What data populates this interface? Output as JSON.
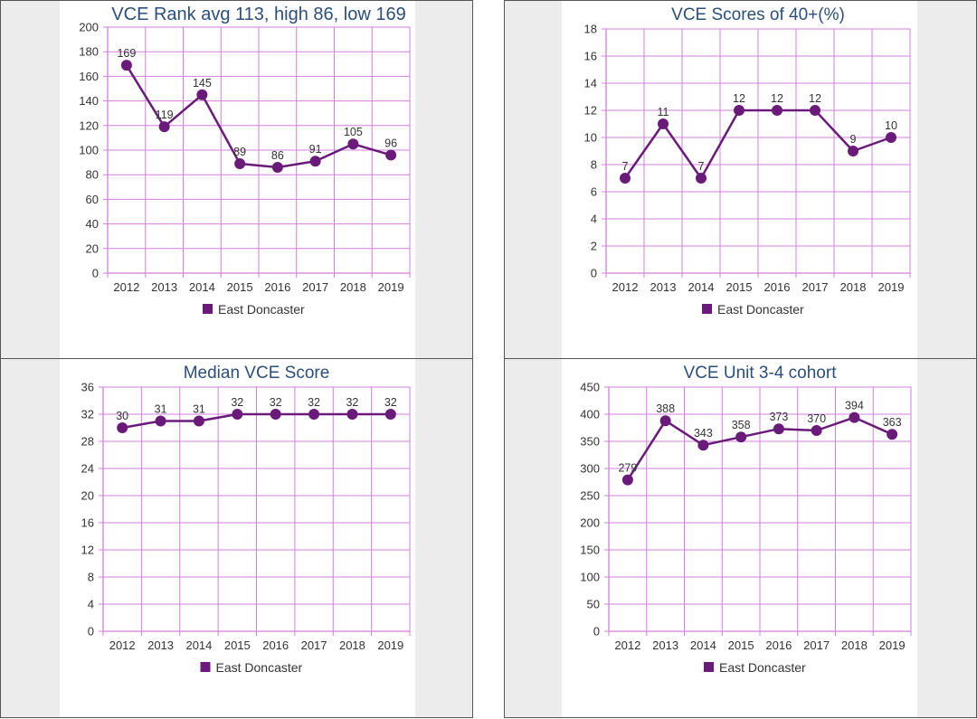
{
  "chart_data": [
    {
      "type": "line",
      "title": "VCE Rank avg 113, high 86, low 169",
      "categories": [
        "2012",
        "2013",
        "2014",
        "2015",
        "2016",
        "2017",
        "2018",
        "2019"
      ],
      "series": [
        {
          "name": "East Doncaster",
          "values": [
            169,
            119,
            145,
            89,
            86,
            91,
            105,
            96
          ]
        }
      ],
      "ylim": [
        0,
        200
      ],
      "yticks": [
        "0",
        "20",
        "40",
        "60",
        "80",
        "100",
        "120",
        "140",
        "160",
        "180",
        "200"
      ],
      "grid": true,
      "legend": "bottom-center",
      "color": "#6a1b7a",
      "grid_color": "#d27fdc"
    },
    {
      "type": "line",
      "title": "VCE Scores of 40+(%)",
      "categories": [
        "2012",
        "2013",
        "2014",
        "2015",
        "2016",
        "2017",
        "2018",
        "2019"
      ],
      "series": [
        {
          "name": "East Doncaster",
          "values": [
            7,
            11,
            7,
            12,
            12,
            12,
            9,
            10
          ]
        }
      ],
      "ylim": [
        0,
        18
      ],
      "yticks": [
        "0",
        "2",
        "4",
        "6",
        "8",
        "10",
        "12",
        "14",
        "16",
        "18"
      ],
      "grid": true,
      "legend": "bottom-center",
      "color": "#6a1b7a",
      "grid_color": "#d27fdc"
    },
    {
      "type": "line",
      "title": "Median VCE Score",
      "categories": [
        "2012",
        "2013",
        "2014",
        "2015",
        "2016",
        "2017",
        "2018",
        "2019"
      ],
      "series": [
        {
          "name": "East Doncaster",
          "values": [
            30,
            31,
            31,
            32,
            32,
            32,
            32,
            32
          ]
        }
      ],
      "ylim": [
        0,
        36
      ],
      "yticks": [
        "0",
        "4",
        "8",
        "12",
        "16",
        "20",
        "24",
        "28",
        "32",
        "36"
      ],
      "grid": true,
      "legend": "bottom-center",
      "color": "#6a1b7a",
      "grid_color": "#d27fdc"
    },
    {
      "type": "line",
      "title": "VCE Unit 3-4 cohort",
      "categories": [
        "2012",
        "2013",
        "2014",
        "2015",
        "2016",
        "2017",
        "2018",
        "2019"
      ],
      "series": [
        {
          "name": "East Doncaster",
          "values": [
            279,
            388,
            343,
            358,
            373,
            370,
            394,
            363
          ]
        }
      ],
      "ylim": [
        0,
        450
      ],
      "yticks": [
        "0",
        "50",
        "100",
        "150",
        "200",
        "250",
        "300",
        "350",
        "400",
        "450"
      ],
      "grid": true,
      "legend": "bottom-center",
      "color": "#6a1b7a",
      "grid_color": "#d27fdc"
    }
  ]
}
